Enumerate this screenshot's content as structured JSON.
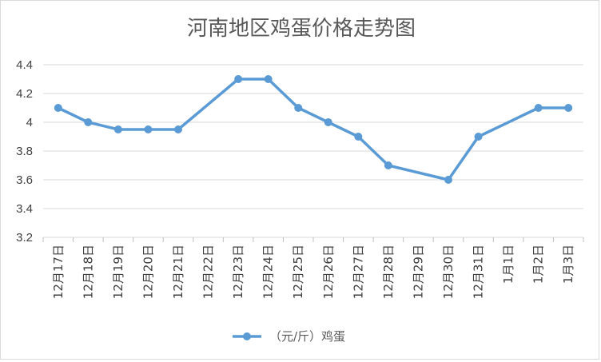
{
  "chart_data": {
    "type": "line",
    "title": "河南地区鸡蛋价格走势图",
    "xlabel": "",
    "ylabel": "",
    "categories": [
      "12月17日",
      "12月18日",
      "12月19日",
      "12月20日",
      "12月21日",
      "12月22日",
      "12月23日",
      "12月24日",
      "12月25日",
      "12月26日",
      "12月27日",
      "12月28日",
      "12月29日",
      "12月30日",
      "12月31日",
      "1月1日",
      "1月2日",
      "1月3日"
    ],
    "y_ticks": [
      "3.2",
      "3.4",
      "3.6",
      "3.8",
      "4",
      "4.2",
      "4.4"
    ],
    "ylim": [
      3.2,
      4.4
    ],
    "grid": true,
    "legend_position": "bottom",
    "series": [
      {
        "name": "（元/斤）鸡蛋",
        "color": "#5b9bd5",
        "points": [
          {
            "x": "12月17日",
            "y": 4.1
          },
          {
            "x": "12月18日",
            "y": 4.0
          },
          {
            "x": "12月19日",
            "y": 3.95
          },
          {
            "x": "12月20日",
            "y": 3.95
          },
          {
            "x": "12月21日",
            "y": 3.95
          },
          {
            "x": "12月23日",
            "y": 4.3
          },
          {
            "x": "12月24日",
            "y": 4.3
          },
          {
            "x": "12月25日",
            "y": 4.1
          },
          {
            "x": "12月26日",
            "y": 4.0
          },
          {
            "x": "12月27日",
            "y": 3.9
          },
          {
            "x": "12月28日",
            "y": 3.7
          },
          {
            "x": "12月30日",
            "y": 3.6
          },
          {
            "x": "12月31日",
            "y": 3.9
          },
          {
            "x": "1月2日",
            "y": 4.1
          },
          {
            "x": "1月3日",
            "y": 4.1
          }
        ]
      }
    ]
  }
}
